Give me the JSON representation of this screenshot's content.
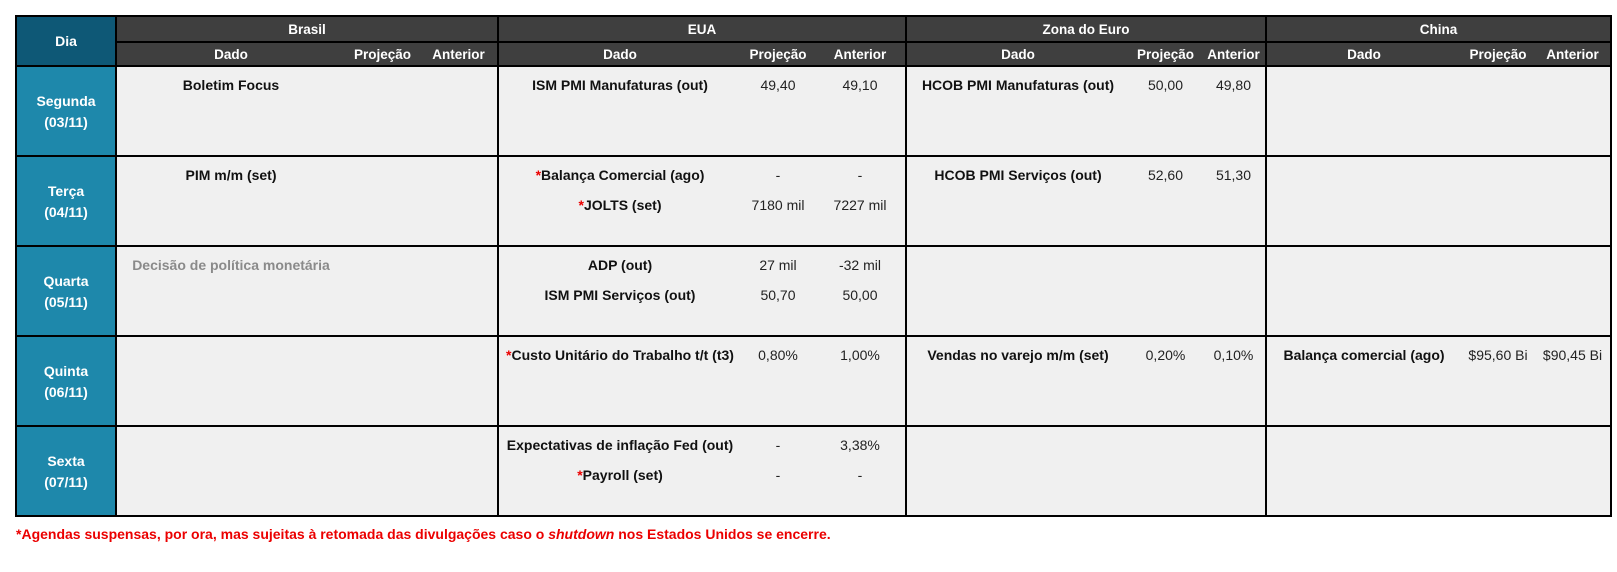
{
  "colors": {
    "dia_header_bg": "#0e5876",
    "day_cell_bg": "#1e88ab",
    "section_header_bg": "#3f3f3f",
    "cell_bg": "#f0f0f0",
    "border": "#000000",
    "alert_red": "#eb0000",
    "muted_text": "#8a8a8a"
  },
  "dia_label": "Dia",
  "sections": [
    {
      "label": "Brasil",
      "dado": "Dado",
      "projecao": "Projeção",
      "anterior": "Anterior"
    },
    {
      "label": "EUA",
      "dado": "Dado",
      "projecao": "Projeção",
      "anterior": "Anterior"
    },
    {
      "label": "Zona do Euro",
      "dado": "Dado",
      "projecao": "Projeção",
      "anterior": "Anterior"
    },
    {
      "label": "China",
      "dado": "Dado",
      "projecao": "Projeção",
      "anterior": "Anterior"
    }
  ],
  "rows": [
    {
      "day": "Segunda",
      "date": "(03/11)",
      "brasil": {
        "items": [
          {
            "name": "Boletim Focus",
            "proj": "",
            "ant": ""
          }
        ]
      },
      "eua": {
        "items": [
          {
            "name": "ISM PMI Manufaturas (out)",
            "proj": "49,40",
            "ant": "49,10"
          }
        ]
      },
      "euro": {
        "items": [
          {
            "name": "HCOB PMI Manufaturas (out)",
            "proj": "50,00",
            "ant": "49,80"
          }
        ]
      },
      "china": {
        "items": []
      }
    },
    {
      "day": "Terça",
      "date": "(04/11)",
      "brasil": {
        "items": [
          {
            "name": "PIM m/m (set)",
            "proj": "",
            "ant": ""
          }
        ]
      },
      "eua": {
        "items": [
          {
            "star": "*",
            "name": "Balança Comercial (ago)",
            "proj": "-",
            "ant": "-"
          },
          {
            "star": "*",
            "name": "JOLTS (set)",
            "proj": "7180 mil",
            "ant": "7227 mil"
          }
        ]
      },
      "euro": {
        "items": [
          {
            "name": "HCOB PMI Serviços (out)",
            "proj": "52,60",
            "ant": "51,30"
          }
        ]
      },
      "china": {
        "items": []
      }
    },
    {
      "day": "Quarta",
      "date": "(05/11)",
      "brasil": {
        "items": [
          {
            "name": "Decisão de política monetária",
            "muted": true,
            "proj": "",
            "ant": ""
          }
        ]
      },
      "eua": {
        "items": [
          {
            "name": "ADP (out)",
            "proj": "27 mil",
            "ant": "-32 mil"
          },
          {
            "name": "ISM PMI Serviços (out)",
            "proj": "50,70",
            "ant": "50,00"
          }
        ]
      },
      "euro": {
        "items": []
      },
      "china": {
        "items": []
      }
    },
    {
      "day": "Quinta",
      "date": "(06/11)",
      "brasil": {
        "items": []
      },
      "eua": {
        "items": [
          {
            "star": "*",
            "name": "Custo Unitário do Trabalho t/t (t3)",
            "proj": "0,80%",
            "ant": "1,00%"
          }
        ]
      },
      "euro": {
        "items": [
          {
            "name": "Vendas no varejo m/m (set)",
            "proj": "0,20%",
            "ant": "0,10%"
          }
        ]
      },
      "china": {
        "items": [
          {
            "name": "Balança comercial (ago)",
            "proj": "$95,60 Bi",
            "ant": "$90,45 Bi"
          }
        ]
      }
    },
    {
      "day": "Sexta",
      "date": "(07/11)",
      "brasil": {
        "items": []
      },
      "eua": {
        "items": [
          {
            "name": "Expectativas de inflação Fed (out)",
            "proj": "-",
            "ant": "3,38%"
          },
          {
            "star": "*",
            "name": "Payroll (set)",
            "proj": "-",
            "ant": "-"
          }
        ]
      },
      "euro": {
        "items": []
      },
      "china": {
        "items": []
      }
    }
  ],
  "footnote": {
    "star": "*",
    "pre": "Agendas suspensas, por ora, mas sujeitas à retomada das divulgações caso o ",
    "italic": "shutdown",
    "post": " nos Estados Unidos se encerre."
  }
}
